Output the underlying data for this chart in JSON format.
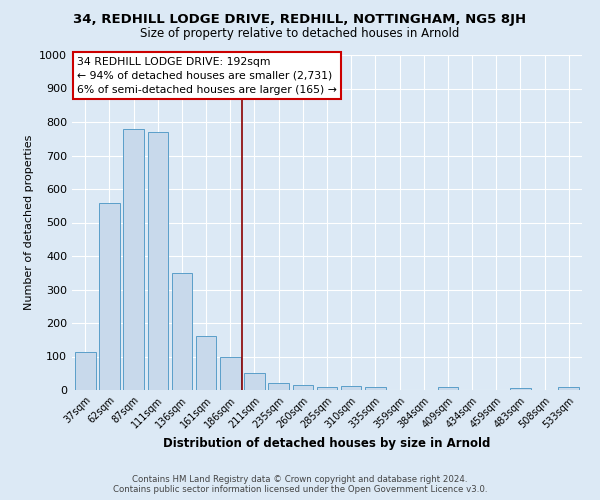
{
  "title_line1": "34, REDHILL LODGE DRIVE, REDHILL, NOTTINGHAM, NG5 8JH",
  "title_line2": "Size of property relative to detached houses in Arnold",
  "xlabel": "Distribution of detached houses by size in Arnold",
  "ylabel": "Number of detached properties",
  "footer_line1": "Contains HM Land Registry data © Crown copyright and database right 2024.",
  "footer_line2": "Contains public sector information licensed under the Open Government Licence v3.0.",
  "categories": [
    "37sqm",
    "62sqm",
    "87sqm",
    "111sqm",
    "136sqm",
    "161sqm",
    "186sqm",
    "211sqm",
    "235sqm",
    "260sqm",
    "285sqm",
    "310sqm",
    "335sqm",
    "359sqm",
    "384sqm",
    "409sqm",
    "434sqm",
    "459sqm",
    "483sqm",
    "508sqm",
    "533sqm"
  ],
  "values": [
    113,
    557,
    779,
    769,
    348,
    160,
    100,
    52,
    22,
    14,
    8,
    11,
    8,
    0,
    0,
    10,
    0,
    0,
    5,
    0,
    8
  ],
  "bar_color": "#c8d9eb",
  "bar_edge_color": "#5a9ec9",
  "bg_color": "#dce9f5",
  "vline_color": "#8b0000",
  "annotation_box_color": "#ffffff",
  "annotation_box_edge_color": "#cc0000",
  "ylim": [
    0,
    1000
  ],
  "yticks": [
    0,
    100,
    200,
    300,
    400,
    500,
    600,
    700,
    800,
    900,
    1000
  ],
  "annotation_text_line1": "34 REDHILL LODGE DRIVE: 192sqm",
  "annotation_text_line2": "← 94% of detached houses are smaller (2,731)",
  "annotation_text_line3": "6% of semi-detached houses are larger (165) →"
}
